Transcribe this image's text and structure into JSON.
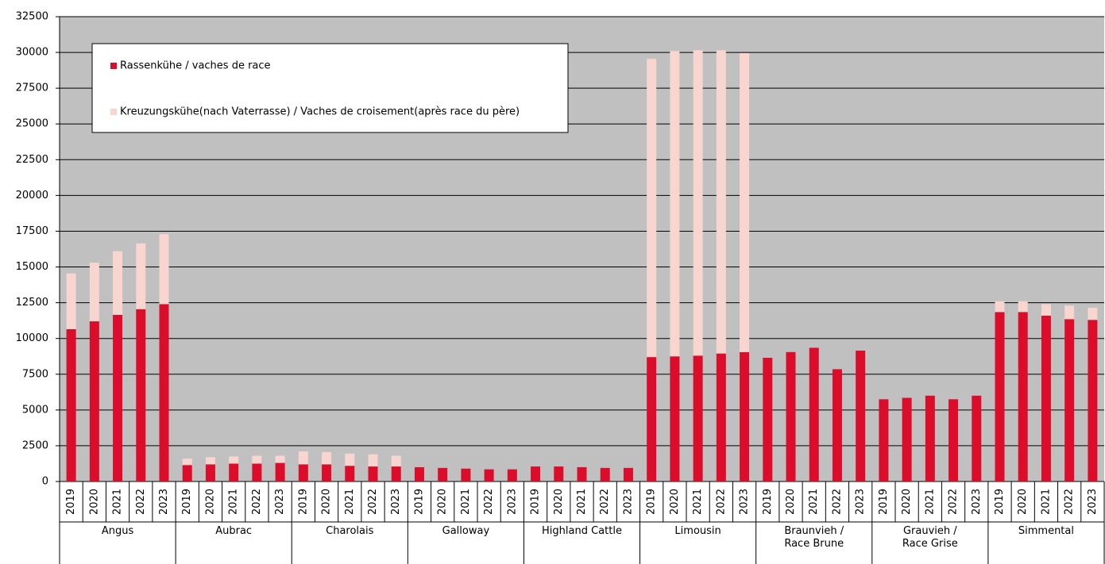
{
  "chart_data": {
    "type": "stacked-bar",
    "categories": [
      "2019",
      "2020",
      "2021",
      "2022",
      "2023",
      "2019",
      "2020",
      "2021",
      "2022",
      "2023",
      "2019",
      "2020",
      "2021",
      "2022",
      "2023",
      "2019",
      "2020",
      "2021",
      "2022",
      "2023",
      "2019",
      "2020",
      "2021",
      "2022",
      "2023",
      "2019",
      "2020",
      "2021",
      "2022",
      "2023",
      "2019",
      "2020",
      "2021",
      "2022",
      "2023",
      "2019",
      "2020",
      "2021",
      "2022",
      "2023",
      "2019",
      "2020",
      "2021",
      "2022",
      "2023"
    ],
    "groups": [
      "Angus",
      "Aubrac",
      "Charolais",
      "Galloway",
      "Highland Cattle",
      "Limousin",
      "Braunvieh /\nRace Brune",
      "Grauvieh /\nRace Grise",
      "Simmental"
    ],
    "series": [
      {
        "name": "Rassenkühe / vaches de race",
        "color": "#dc0d2a",
        "values": [
          10650,
          11200,
          11650,
          12050,
          12400,
          1150,
          1200,
          1250,
          1250,
          1300,
          1200,
          1200,
          1100,
          1050,
          1050,
          1000,
          950,
          900,
          850,
          850,
          1050,
          1050,
          1000,
          950,
          950,
          8700,
          8750,
          8800,
          8950,
          9050,
          8650,
          9050,
          9350,
          7850,
          9150,
          5750,
          5850,
          6000,
          5750,
          6000,
          11850,
          11850,
          11600,
          11350,
          11300
        ]
      },
      {
        "name": "Kreuzungskühe(nach Vaterrasse) / Vaches de croisement(après race du père)",
        "color": "#f9d5d0",
        "values": [
          3900,
          4100,
          4450,
          4600,
          4900,
          450,
          500,
          500,
          550,
          500,
          900,
          850,
          850,
          850,
          750,
          0,
          0,
          0,
          0,
          0,
          0,
          0,
          0,
          0,
          0,
          20850,
          21350,
          21350,
          21200,
          20900,
          0,
          0,
          0,
          0,
          0,
          0,
          0,
          0,
          0,
          0,
          750,
          750,
          800,
          950,
          850
        ]
      }
    ],
    "ylim": [
      0,
      32500
    ],
    "yticks": [
      0,
      2500,
      5000,
      7500,
      10000,
      12500,
      15000,
      17500,
      20000,
      22500,
      25000,
      27500,
      30000,
      32500
    ],
    "grid": true,
    "legend": "upper-left",
    "plot_background": "#c0c0c0"
  }
}
